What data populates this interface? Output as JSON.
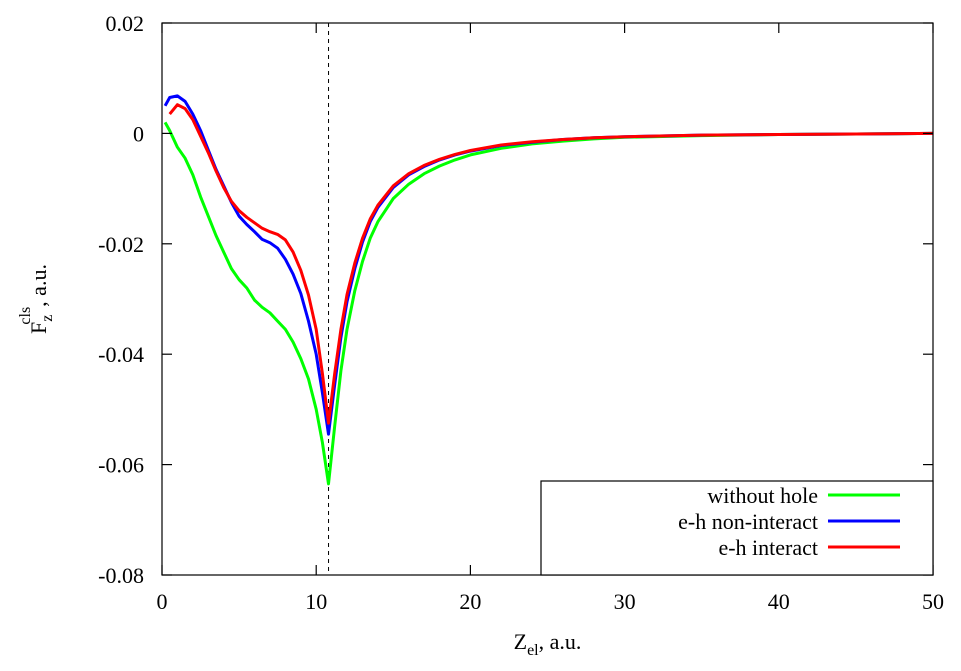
{
  "chart_data": {
    "type": "line",
    "xlabel": {
      "main": "Z",
      "sub": "el",
      "rest": ", a.u."
    },
    "ylabel": {
      "main": "F",
      "sub": "z",
      "sup": "cls",
      "rest": ", a.u."
    },
    "xlim": [
      0,
      50
    ],
    "ylim": [
      -0.08,
      0.02
    ],
    "xticks": [
      0,
      10,
      20,
      30,
      40,
      50
    ],
    "xtick_labels": [
      "0",
      "10",
      "20",
      "30",
      "40",
      "50"
    ],
    "yticks": [
      -0.08,
      -0.06,
      -0.04,
      -0.02,
      0,
      0.02
    ],
    "ytick_labels": [
      "-0.08",
      "-0.06",
      "-0.04",
      "-0.02",
      "0",
      "0.02"
    ],
    "grid": false,
    "legend_position": "bottom-right",
    "vline": {
      "x": 10.8,
      "style": "dashed",
      "color": "#000000"
    },
    "series": [
      {
        "name": "without hole",
        "color": "#00ff00",
        "x": [
          0.2,
          0.5,
          1,
          1.5,
          2,
          2.5,
          3,
          3.5,
          4,
          4.5,
          5,
          5.5,
          6,
          6.5,
          7,
          7.5,
          8,
          8.5,
          9,
          9.5,
          10,
          10.4,
          10.8,
          11.2,
          11.6,
          12,
          12.5,
          13,
          13.5,
          14,
          15,
          16,
          17,
          18,
          19,
          20,
          22,
          24,
          26,
          28,
          30,
          35,
          40,
          45,
          50
        ],
        "y": [
          0.002,
          0.0005,
          -0.0025,
          -0.0045,
          -0.0075,
          -0.0115,
          -0.015,
          -0.0185,
          -0.0215,
          -0.0245,
          -0.0265,
          -0.028,
          -0.0302,
          -0.0315,
          -0.0325,
          -0.034,
          -0.0355,
          -0.0378,
          -0.0408,
          -0.0445,
          -0.05,
          -0.056,
          -0.0635,
          -0.053,
          -0.043,
          -0.0355,
          -0.0285,
          -0.0232,
          -0.019,
          -0.016,
          -0.0118,
          -0.0092,
          -0.0073,
          -0.0059,
          -0.0048,
          -0.0039,
          -0.0027,
          -0.0019,
          -0.0014,
          -0.001,
          -0.0007,
          -0.0004,
          -0.0002,
          -0.0001,
          0
        ]
      },
      {
        "name": "e-h non-interact",
        "color": "#0000ff",
        "x": [
          0.2,
          0.5,
          1,
          1.5,
          2,
          2.5,
          3,
          3.5,
          4,
          4.5,
          5,
          5.5,
          6,
          6.5,
          7,
          7.5,
          8,
          8.5,
          9,
          9.5,
          10,
          10.4,
          10.8,
          11.2,
          11.6,
          12,
          12.5,
          13,
          13.5,
          14,
          15,
          16,
          17,
          18,
          19,
          20,
          22,
          24,
          26,
          28,
          30,
          35,
          40,
          45,
          50
        ],
        "y": [
          0.005,
          0.0065,
          0.0068,
          0.0058,
          0.0035,
          0.0005,
          -0.003,
          -0.0065,
          -0.0095,
          -0.0125,
          -0.015,
          -0.0165,
          -0.0178,
          -0.0192,
          -0.0198,
          -0.0208,
          -0.0228,
          -0.0255,
          -0.029,
          -0.034,
          -0.04,
          -0.047,
          -0.0545,
          -0.0455,
          -0.037,
          -0.0305,
          -0.0245,
          -0.0197,
          -0.016,
          -0.0134,
          -0.0098,
          -0.0075,
          -0.006,
          -0.0048,
          -0.0039,
          -0.0032,
          -0.0022,
          -0.0016,
          -0.0011,
          -0.0008,
          -0.0006,
          -0.0003,
          -0.0002,
          -0.0001,
          0
        ]
      },
      {
        "name": "e-h interact",
        "color": "#ff0000",
        "x": [
          0.5,
          1,
          1.5,
          2,
          2.5,
          3,
          3.5,
          4,
          4.5,
          5,
          5.5,
          6,
          6.5,
          7,
          7.5,
          8,
          8.5,
          9,
          9.5,
          10,
          10.4,
          10.8,
          11.2,
          11.6,
          12,
          12.5,
          13,
          13.5,
          14,
          15,
          16,
          17,
          18,
          19,
          20,
          22,
          24,
          26,
          28,
          30,
          35,
          40,
          45,
          50
        ],
        "y": [
          0.0035,
          0.0052,
          0.0045,
          0.0025,
          -0.0005,
          -0.0035,
          -0.0068,
          -0.0098,
          -0.0123,
          -0.014,
          -0.0152,
          -0.0162,
          -0.0172,
          -0.0178,
          -0.0183,
          -0.0193,
          -0.0215,
          -0.0248,
          -0.0293,
          -0.0355,
          -0.0435,
          -0.0525,
          -0.0435,
          -0.0355,
          -0.0292,
          -0.0235,
          -0.019,
          -0.0155,
          -0.013,
          -0.0095,
          -0.0073,
          -0.0058,
          -0.0047,
          -0.0038,
          -0.0031,
          -0.0021,
          -0.0015,
          -0.0011,
          -0.0008,
          -0.0006,
          -0.0003,
          -0.0002,
          -0.0001,
          0
        ]
      }
    ]
  }
}
